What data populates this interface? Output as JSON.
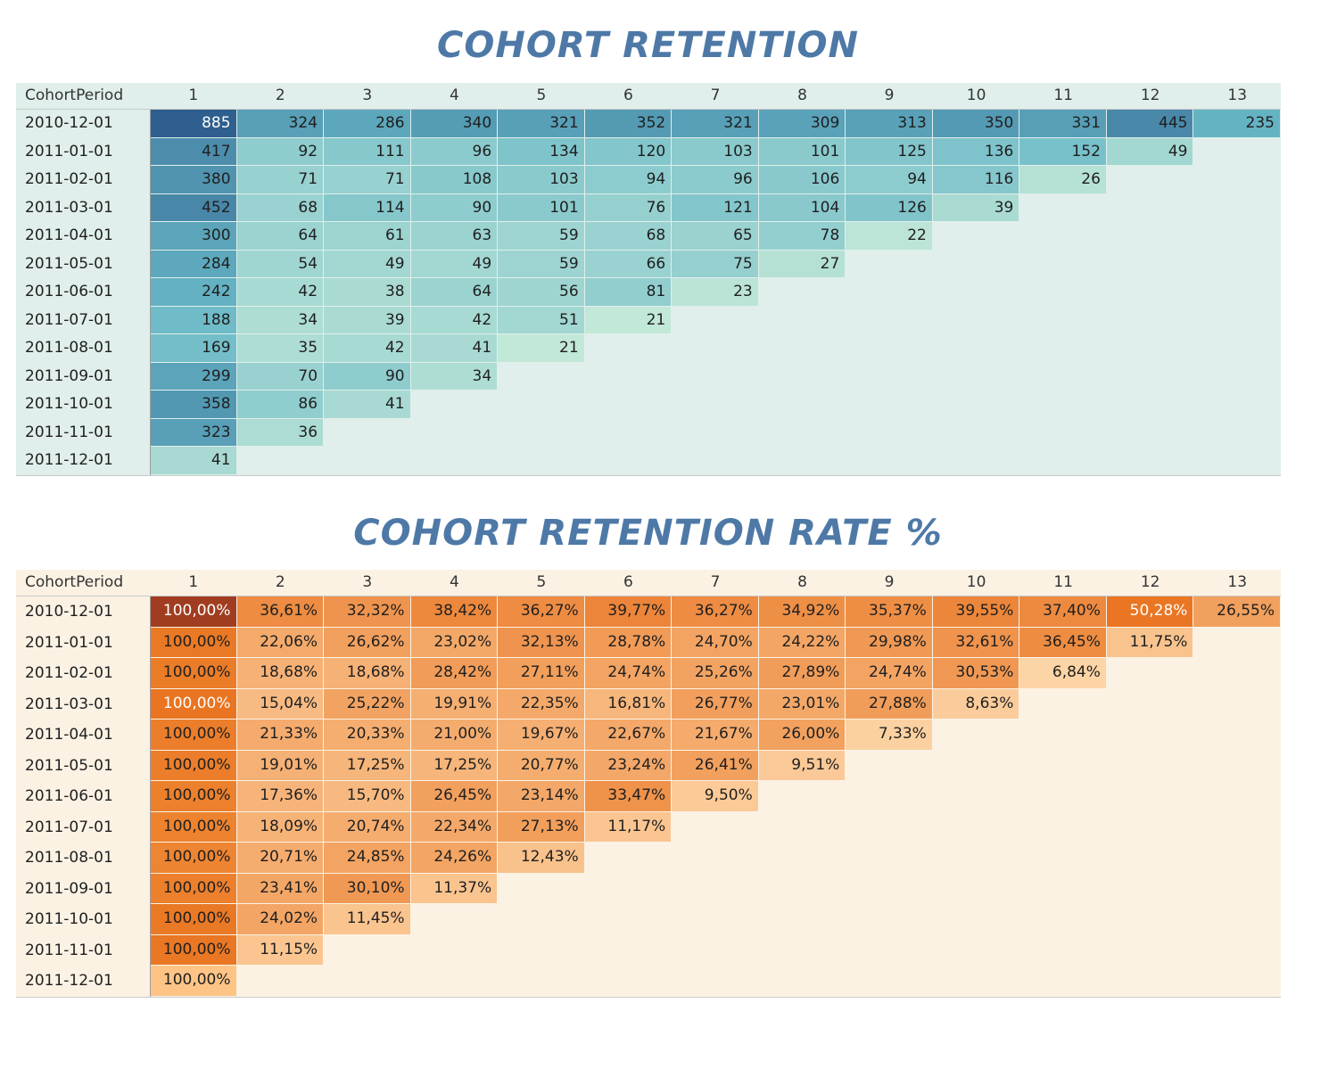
{
  "chart_data": [
    {
      "type": "heatmap",
      "title": "COHORT RETENTION",
      "row_header": "CohortPeriod",
      "columns": [
        "1",
        "2",
        "3",
        "4",
        "5",
        "6",
        "7",
        "8",
        "9",
        "10",
        "11",
        "12",
        "13"
      ],
      "rows": [
        "2010-12-01",
        "2011-01-01",
        "2011-02-01",
        "2011-03-01",
        "2011-04-01",
        "2011-05-01",
        "2011-06-01",
        "2011-07-01",
        "2011-08-01",
        "2011-09-01",
        "2011-10-01",
        "2011-11-01",
        "2011-12-01"
      ],
      "values": [
        [
          885,
          324,
          286,
          340,
          321,
          352,
          321,
          309,
          313,
          350,
          331,
          445,
          235
        ],
        [
          417,
          92,
          111,
          96,
          134,
          120,
          103,
          101,
          125,
          136,
          152,
          49
        ],
        [
          380,
          71,
          71,
          108,
          103,
          94,
          96,
          106,
          94,
          116,
          26
        ],
        [
          452,
          68,
          114,
          90,
          101,
          76,
          121,
          104,
          126,
          39
        ],
        [
          300,
          64,
          61,
          63,
          59,
          68,
          65,
          78,
          22
        ],
        [
          284,
          54,
          49,
          49,
          59,
          66,
          75,
          27
        ],
        [
          242,
          42,
          38,
          64,
          56,
          81,
          23
        ],
        [
          188,
          34,
          39,
          42,
          51,
          21
        ],
        [
          169,
          35,
          42,
          41,
          21
        ],
        [
          299,
          70,
          90,
          34
        ],
        [
          358,
          86,
          41
        ],
        [
          323,
          36
        ],
        [
          41
        ]
      ],
      "colors": {
        "low": "#c0e6d6",
        "high": "#2e5f8e",
        "background": "#e0efeb"
      }
    },
    {
      "type": "heatmap",
      "title": "COHORT RETENTION RATE %",
      "row_header": "CohortPeriod",
      "columns": [
        "1",
        "2",
        "3",
        "4",
        "5",
        "6",
        "7",
        "8",
        "9",
        "10",
        "11",
        "12",
        "13"
      ],
      "rows": [
        "2010-12-01",
        "2011-01-01",
        "2011-02-01",
        "2011-03-01",
        "2011-04-01",
        "2011-05-01",
        "2011-06-01",
        "2011-07-01",
        "2011-08-01",
        "2011-09-01",
        "2011-10-01",
        "2011-11-01",
        "2011-12-01"
      ],
      "values": [
        [
          "100,00%",
          "36,61%",
          "32,32%",
          "38,42%",
          "36,27%",
          "39,77%",
          "36,27%",
          "34,92%",
          "35,37%",
          "39,55%",
          "37,40%",
          "50,28%",
          "26,55%"
        ],
        [
          "100,00%",
          "22,06%",
          "26,62%",
          "23,02%",
          "32,13%",
          "28,78%",
          "24,70%",
          "24,22%",
          "29,98%",
          "32,61%",
          "36,45%",
          "11,75%"
        ],
        [
          "100,00%",
          "18,68%",
          "18,68%",
          "28,42%",
          "27,11%",
          "24,74%",
          "25,26%",
          "27,89%",
          "24,74%",
          "30,53%",
          "6,84%"
        ],
        [
          "100,00%",
          "15,04%",
          "25,22%",
          "19,91%",
          "22,35%",
          "16,81%",
          "26,77%",
          "23,01%",
          "27,88%",
          "8,63%"
        ],
        [
          "100,00%",
          "21,33%",
          "20,33%",
          "21,00%",
          "19,67%",
          "22,67%",
          "21,67%",
          "26,00%",
          "7,33%"
        ],
        [
          "100,00%",
          "19,01%",
          "17,25%",
          "17,25%",
          "20,77%",
          "23,24%",
          "26,41%",
          "9,51%"
        ],
        [
          "100,00%",
          "17,36%",
          "15,70%",
          "26,45%",
          "23,14%",
          "33,47%",
          "9,50%"
        ],
        [
          "100,00%",
          "18,09%",
          "20,74%",
          "22,34%",
          "27,13%",
          "11,17%"
        ],
        [
          "100,00%",
          "20,71%",
          "24,85%",
          "24,26%",
          "12,43%"
        ],
        [
          "100,00%",
          "23,41%",
          "30,10%",
          "11,37%"
        ],
        [
          "100,00%",
          "24,02%",
          "11,45%"
        ],
        [
          "100,00%",
          "11,15%"
        ],
        [
          "100,00%"
        ]
      ],
      "colors": {
        "low": "#fdd4a5",
        "high": "#e8721f",
        "top": "#a03d20",
        "background": "#fbf2e4"
      }
    }
  ]
}
